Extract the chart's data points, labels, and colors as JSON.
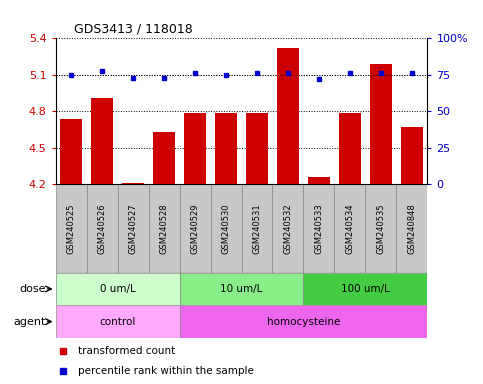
{
  "title": "GDS3413 / 118018",
  "samples": [
    "GSM240525",
    "GSM240526",
    "GSM240527",
    "GSM240528",
    "GSM240529",
    "GSM240530",
    "GSM240531",
    "GSM240532",
    "GSM240533",
    "GSM240534",
    "GSM240535",
    "GSM240848"
  ],
  "transformed_count": [
    4.74,
    4.91,
    4.21,
    4.63,
    4.79,
    4.79,
    4.79,
    5.32,
    4.26,
    4.79,
    5.19,
    4.67
  ],
  "percentile_rank": [
    75,
    78,
    73,
    73,
    76,
    75,
    76,
    76,
    72,
    76,
    76,
    76
  ],
  "bar_color": "#cc0000",
  "dot_color": "#0000cc",
  "ylim_left": [
    4.2,
    5.4
  ],
  "ylim_right": [
    0,
    100
  ],
  "yticks_left": [
    4.2,
    4.5,
    4.8,
    5.1,
    5.4
  ],
  "yticks_right": [
    0,
    25,
    50,
    75,
    100
  ],
  "ylabel_left_color": "#cc0000",
  "ylabel_right_color": "#0000cc",
  "dose_groups": [
    {
      "label": "0 um/L",
      "start": 0,
      "end": 4,
      "color": "#ccffcc"
    },
    {
      "label": "10 um/L",
      "start": 4,
      "end": 8,
      "color": "#88ee88"
    },
    {
      "label": "100 um/L",
      "start": 8,
      "end": 12,
      "color": "#44cc44"
    }
  ],
  "agent_groups": [
    {
      "label": "control",
      "start": 0,
      "end": 4,
      "color": "#ffaaff"
    },
    {
      "label": "homocysteine",
      "start": 4,
      "end": 12,
      "color": "#ee66ee"
    }
  ],
  "dose_label": "dose",
  "agent_label": "agent",
  "legend_bar_label": "transformed count",
  "legend_dot_label": "percentile rank within the sample",
  "sample_bg_color": "#c8c8c8",
  "plot_bg_color": "#ffffff",
  "grid_color": "#000000",
  "n_samples": 12
}
